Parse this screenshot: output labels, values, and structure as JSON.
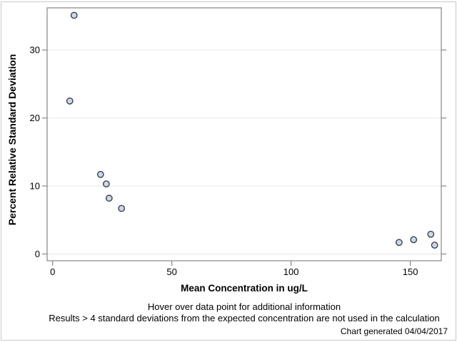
{
  "page": {
    "background": "#ffffff",
    "border_color": "#c9c9c9",
    "frame_color": "#868686",
    "gridline_color": "#e5e5e5",
    "text_color": "#000000"
  },
  "chart_data": {
    "type": "scatter",
    "title": "",
    "xlabel": "Mean Concentration in ug/L",
    "ylabel": "Percent Relative Standard Deviation",
    "xlim": [
      -2.3,
      163.0
    ],
    "ylim": [
      -1.0,
      36.2
    ],
    "xticks": [
      0,
      50,
      100,
      150
    ],
    "yticks": [
      0,
      10,
      20,
      30
    ],
    "grid": "horizontal-only",
    "legend": "none",
    "marker": {
      "shape": "circle",
      "fill": "#cdd7e5",
      "stroke": "#3b414d",
      "radius": 4.2
    },
    "points": [
      {
        "x": 9.0,
        "y": 35.1
      },
      {
        "x": 7.2,
        "y": 22.5
      },
      {
        "x": 20.1,
        "y": 11.7
      },
      {
        "x": 22.5,
        "y": 10.3
      },
      {
        "x": 23.7,
        "y": 8.2
      },
      {
        "x": 28.9,
        "y": 6.7
      },
      {
        "x": 145.3,
        "y": 1.7
      },
      {
        "x": 151.4,
        "y": 2.1
      },
      {
        "x": 158.6,
        "y": 2.9
      },
      {
        "x": 160.2,
        "y": 1.3
      }
    ]
  },
  "footnotes": {
    "hover": "Hover over data point for additional information",
    "results": "Results > 4 standard deviations from the expected concentration are not used in the calculation",
    "generated": "Chart generated 04/04/2017"
  }
}
